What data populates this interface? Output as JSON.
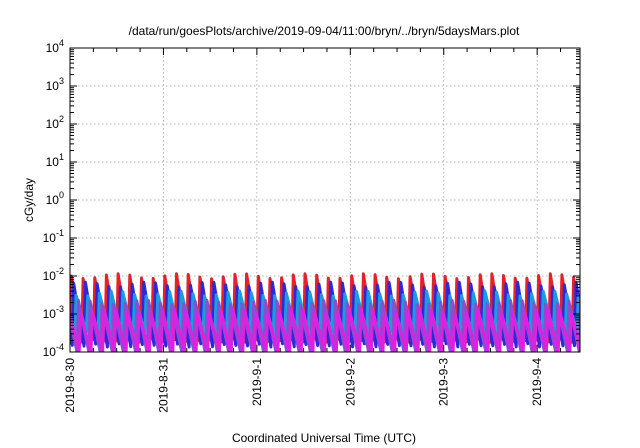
{
  "chart_data": {
    "type": "line",
    "title": "/data/run/goesPlots/archive/2019-09-04/11:00/bryn/../bryn/5daysMars.plot",
    "xlabel": "Coordinated Universal Time (UTC)",
    "ylabel": "cGy/day",
    "x_range": [
      "2019-08-30T00:00",
      "2019-09-04T11:00"
    ],
    "x_ticks": [
      "2019-8-30",
      "2019-8-31",
      "2019-9-1",
      "2019-9-2",
      "2019-9-3",
      "2019-9-4"
    ],
    "y_scale": "log",
    "ylim": [
      0.0001,
      10000
    ],
    "y_ticks": [
      {
        "base": "10",
        "exp": "-4"
      },
      {
        "base": "10",
        "exp": "-3"
      },
      {
        "base": "10",
        "exp": "-2"
      },
      {
        "base": "10",
        "exp": "-1"
      },
      {
        "base": "10",
        "exp": "0"
      },
      {
        "base": "10",
        "exp": "1"
      },
      {
        "base": "10",
        "exp": "2"
      },
      {
        "base": "10",
        "exp": "3"
      },
      {
        "base": "10",
        "exp": "4"
      }
    ],
    "grid": true,
    "sawtooth_period_hours": 3,
    "series": [
      {
        "color": "#e8202a",
        "peak": 0.01,
        "trough": 0.0002,
        "phase_hours": 0
      },
      {
        "color": "#2a2ad8",
        "peak": 0.006,
        "trough": 0.00015,
        "phase_hours": 0.6
      },
      {
        "color": "#1e9bdc",
        "peak": 0.0035,
        "trough": 0.0003,
        "phase_hours": 1.2
      },
      {
        "color": "#8a4fd0",
        "peak": 0.002,
        "trough": 0.0001,
        "phase_hours": 1.8
      },
      {
        "color": "#e020e0",
        "peak": 0.0012,
        "trough": 0.0001,
        "phase_hours": 2.4
      }
    ]
  }
}
